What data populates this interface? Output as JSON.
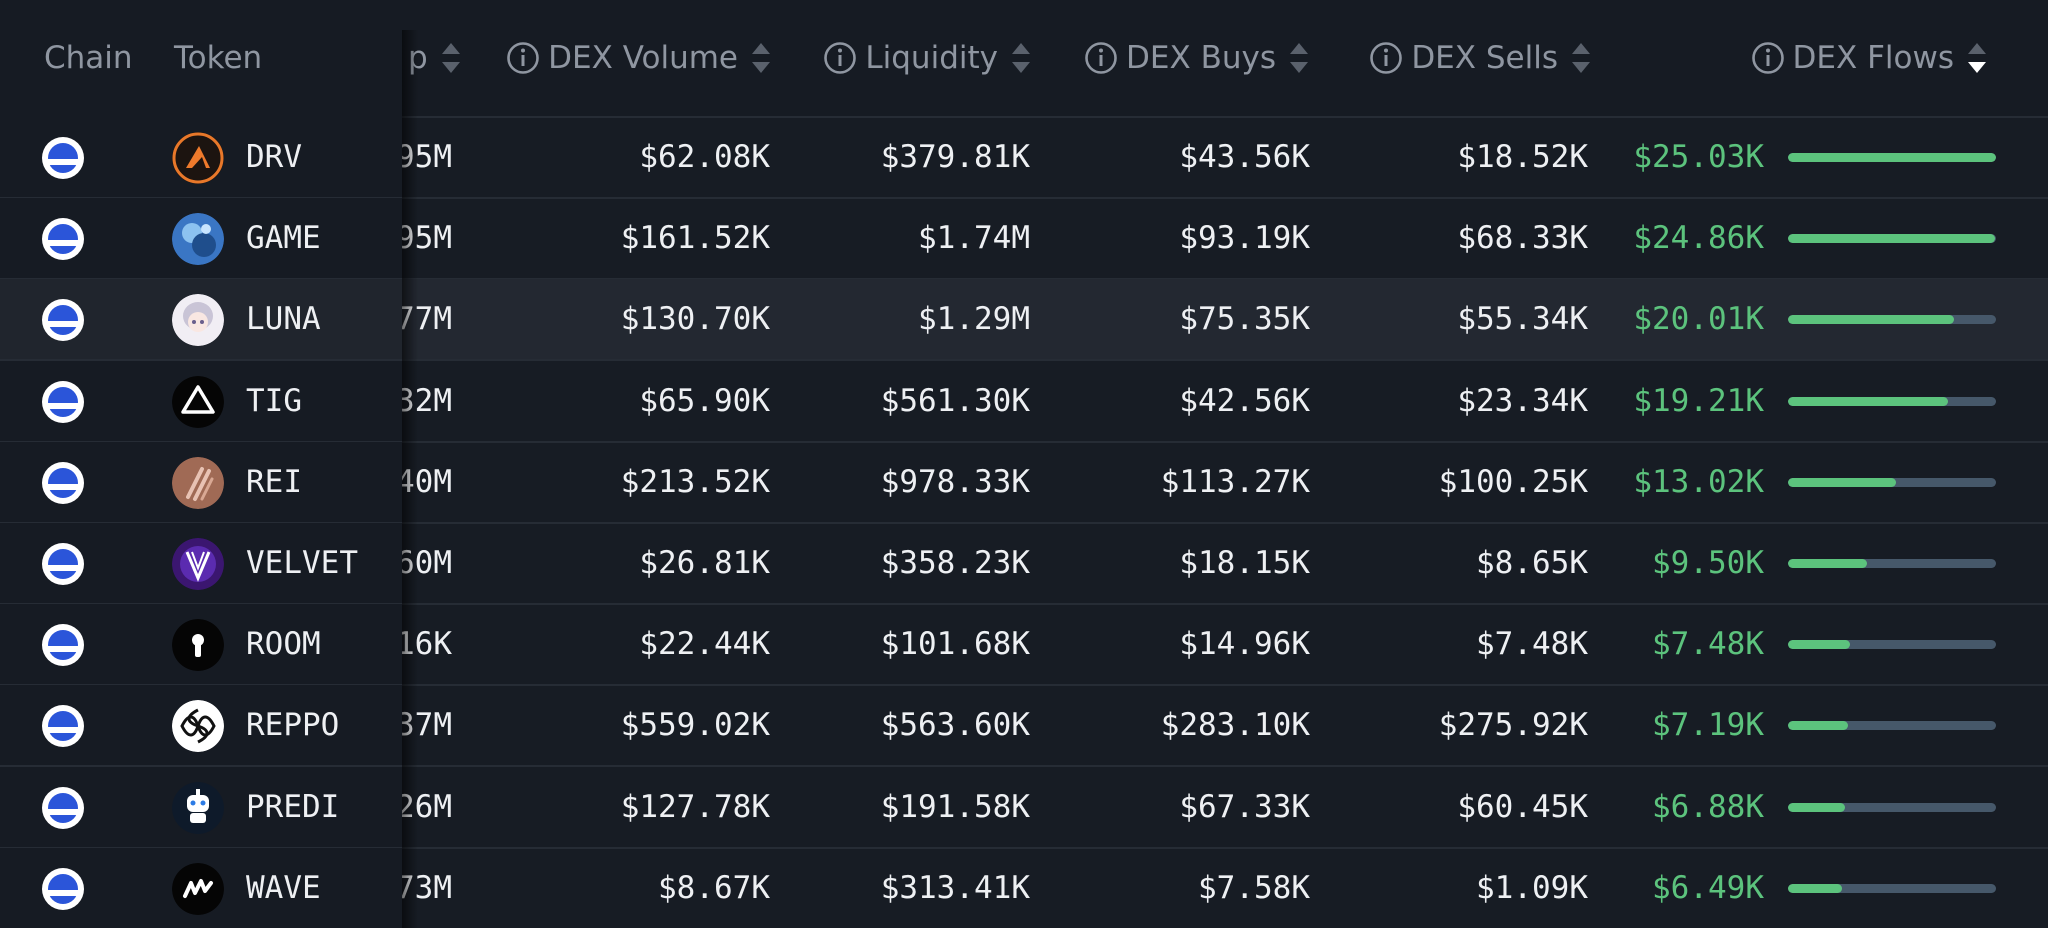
{
  "columns": {
    "chain": "Chain",
    "token": "Token",
    "mcap_fragment": "p",
    "dex_volume": "DEX Volume",
    "liquidity": "Liquidity",
    "dex_buys": "DEX Buys",
    "dex_sells": "DEX Sells",
    "dex_flows": "DEX Flows"
  },
  "rows": [
    {
      "token": "DRV",
      "mcap": "95M",
      "volume": "$62.08K",
      "liquidity": "$379.81K",
      "buys": "$43.56K",
      "sells": "$18.52K",
      "flows": "$25.03K",
      "flow_ratio": 1.0
    },
    {
      "token": "GAME",
      "mcap": "95M",
      "volume": "$161.52K",
      "liquidity": "$1.74M",
      "buys": "$93.19K",
      "sells": "$68.33K",
      "flows": "$24.86K",
      "flow_ratio": 0.993
    },
    {
      "token": "LUNA",
      "mcap": "77M",
      "volume": "$130.70K",
      "liquidity": "$1.29M",
      "buys": "$75.35K",
      "sells": "$55.34K",
      "flows": "$20.01K",
      "flow_ratio": 0.8
    },
    {
      "token": "TIG",
      "mcap": "32M",
      "volume": "$65.90K",
      "liquidity": "$561.30K",
      "buys": "$42.56K",
      "sells": "$23.34K",
      "flows": "$19.21K",
      "flow_ratio": 0.77
    },
    {
      "token": "REI",
      "mcap": "40M",
      "volume": "$213.52K",
      "liquidity": "$978.33K",
      "buys": "$113.27K",
      "sells": "$100.25K",
      "flows": "$13.02K",
      "flow_ratio": 0.52
    },
    {
      "token": "VELVET",
      "mcap": "60M",
      "volume": "$26.81K",
      "liquidity": "$358.23K",
      "buys": "$18.15K",
      "sells": "$8.65K",
      "flows": "$9.50K",
      "flow_ratio": 0.38
    },
    {
      "token": "ROOM",
      "mcap": "16K",
      "volume": "$22.44K",
      "liquidity": "$101.68K",
      "buys": "$14.96K",
      "sells": "$7.48K",
      "flows": "$7.48K",
      "flow_ratio": 0.3
    },
    {
      "token": "REPPO",
      "mcap": "37M",
      "volume": "$559.02K",
      "liquidity": "$563.60K",
      "buys": "$283.10K",
      "sells": "$275.92K",
      "flows": "$7.19K",
      "flow_ratio": 0.29
    },
    {
      "token": "PREDI",
      "mcap": "26M",
      "volume": "$127.78K",
      "liquidity": "$191.58K",
      "buys": "$67.33K",
      "sells": "$60.45K",
      "flows": "$6.88K",
      "flow_ratio": 0.275
    },
    {
      "token": "WAVE",
      "mcap": "73M",
      "volume": "$8.67K",
      "liquidity": "$313.41K",
      "buys": "$7.58K",
      "sells": "$1.09K",
      "flows": "$6.49K",
      "flow_ratio": 0.26
    }
  ],
  "colors": {
    "background": "#171c24",
    "positive": "#5cc37d",
    "bar_track": "#46586a",
    "header_text": "#8f96a1",
    "chain_icon": "#2b55d9"
  },
  "icons": {
    "header_info": "info-circle-icon",
    "header_sort": "sort-arrows-icon",
    "chain": "base-chain-icon"
  }
}
